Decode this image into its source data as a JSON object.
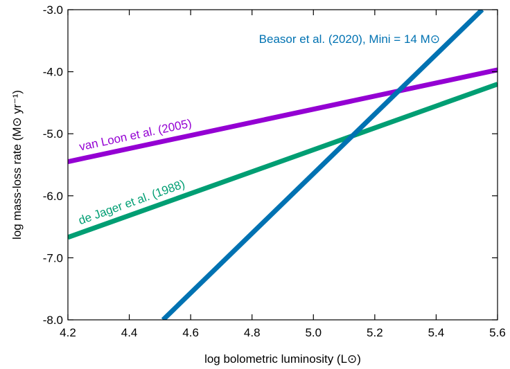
{
  "chart_data": {
    "type": "line",
    "xlabel": "log bolometric luminosity (L⊙)",
    "ylabel": "log mass-loss rate (M⊙ yr⁻¹)",
    "xlim": [
      4.2,
      5.6
    ],
    "ylim": [
      -8.0,
      -3.0
    ],
    "xticks": [
      4.2,
      4.4,
      4.6,
      4.8,
      5.0,
      5.2,
      5.4,
      5.6
    ],
    "yticks": [
      -8.0,
      -7.0,
      -6.0,
      -5.0,
      -4.0,
      -3.0
    ],
    "xtick_labels": [
      "4.2",
      "4.4",
      "4.6",
      "4.8",
      "5.0",
      "5.2",
      "5.4",
      "5.6"
    ],
    "ytick_labels": [
      "-8.0",
      "-7.0",
      "-6.0",
      "-5.0",
      "-4.0",
      "-3.0"
    ],
    "grid": false,
    "legend": "inline labels",
    "series": [
      {
        "name": "van Loon et al. (2005)",
        "color": "#9400d3",
        "x": [
          4.2,
          5.6
        ],
        "y": [
          -5.45,
          -3.97
        ]
      },
      {
        "name": "de Jager et al. (1988)",
        "color": "#009e73",
        "x": [
          4.2,
          5.6
        ],
        "y": [
          -6.67,
          -4.2
        ]
      },
      {
        "name": "Beasor et al. (2020), Mini = 14 M⊙",
        "color": "#0072b2",
        "x": [
          4.51,
          5.55
        ],
        "y": [
          -8.0,
          -3.0
        ]
      }
    ]
  }
}
